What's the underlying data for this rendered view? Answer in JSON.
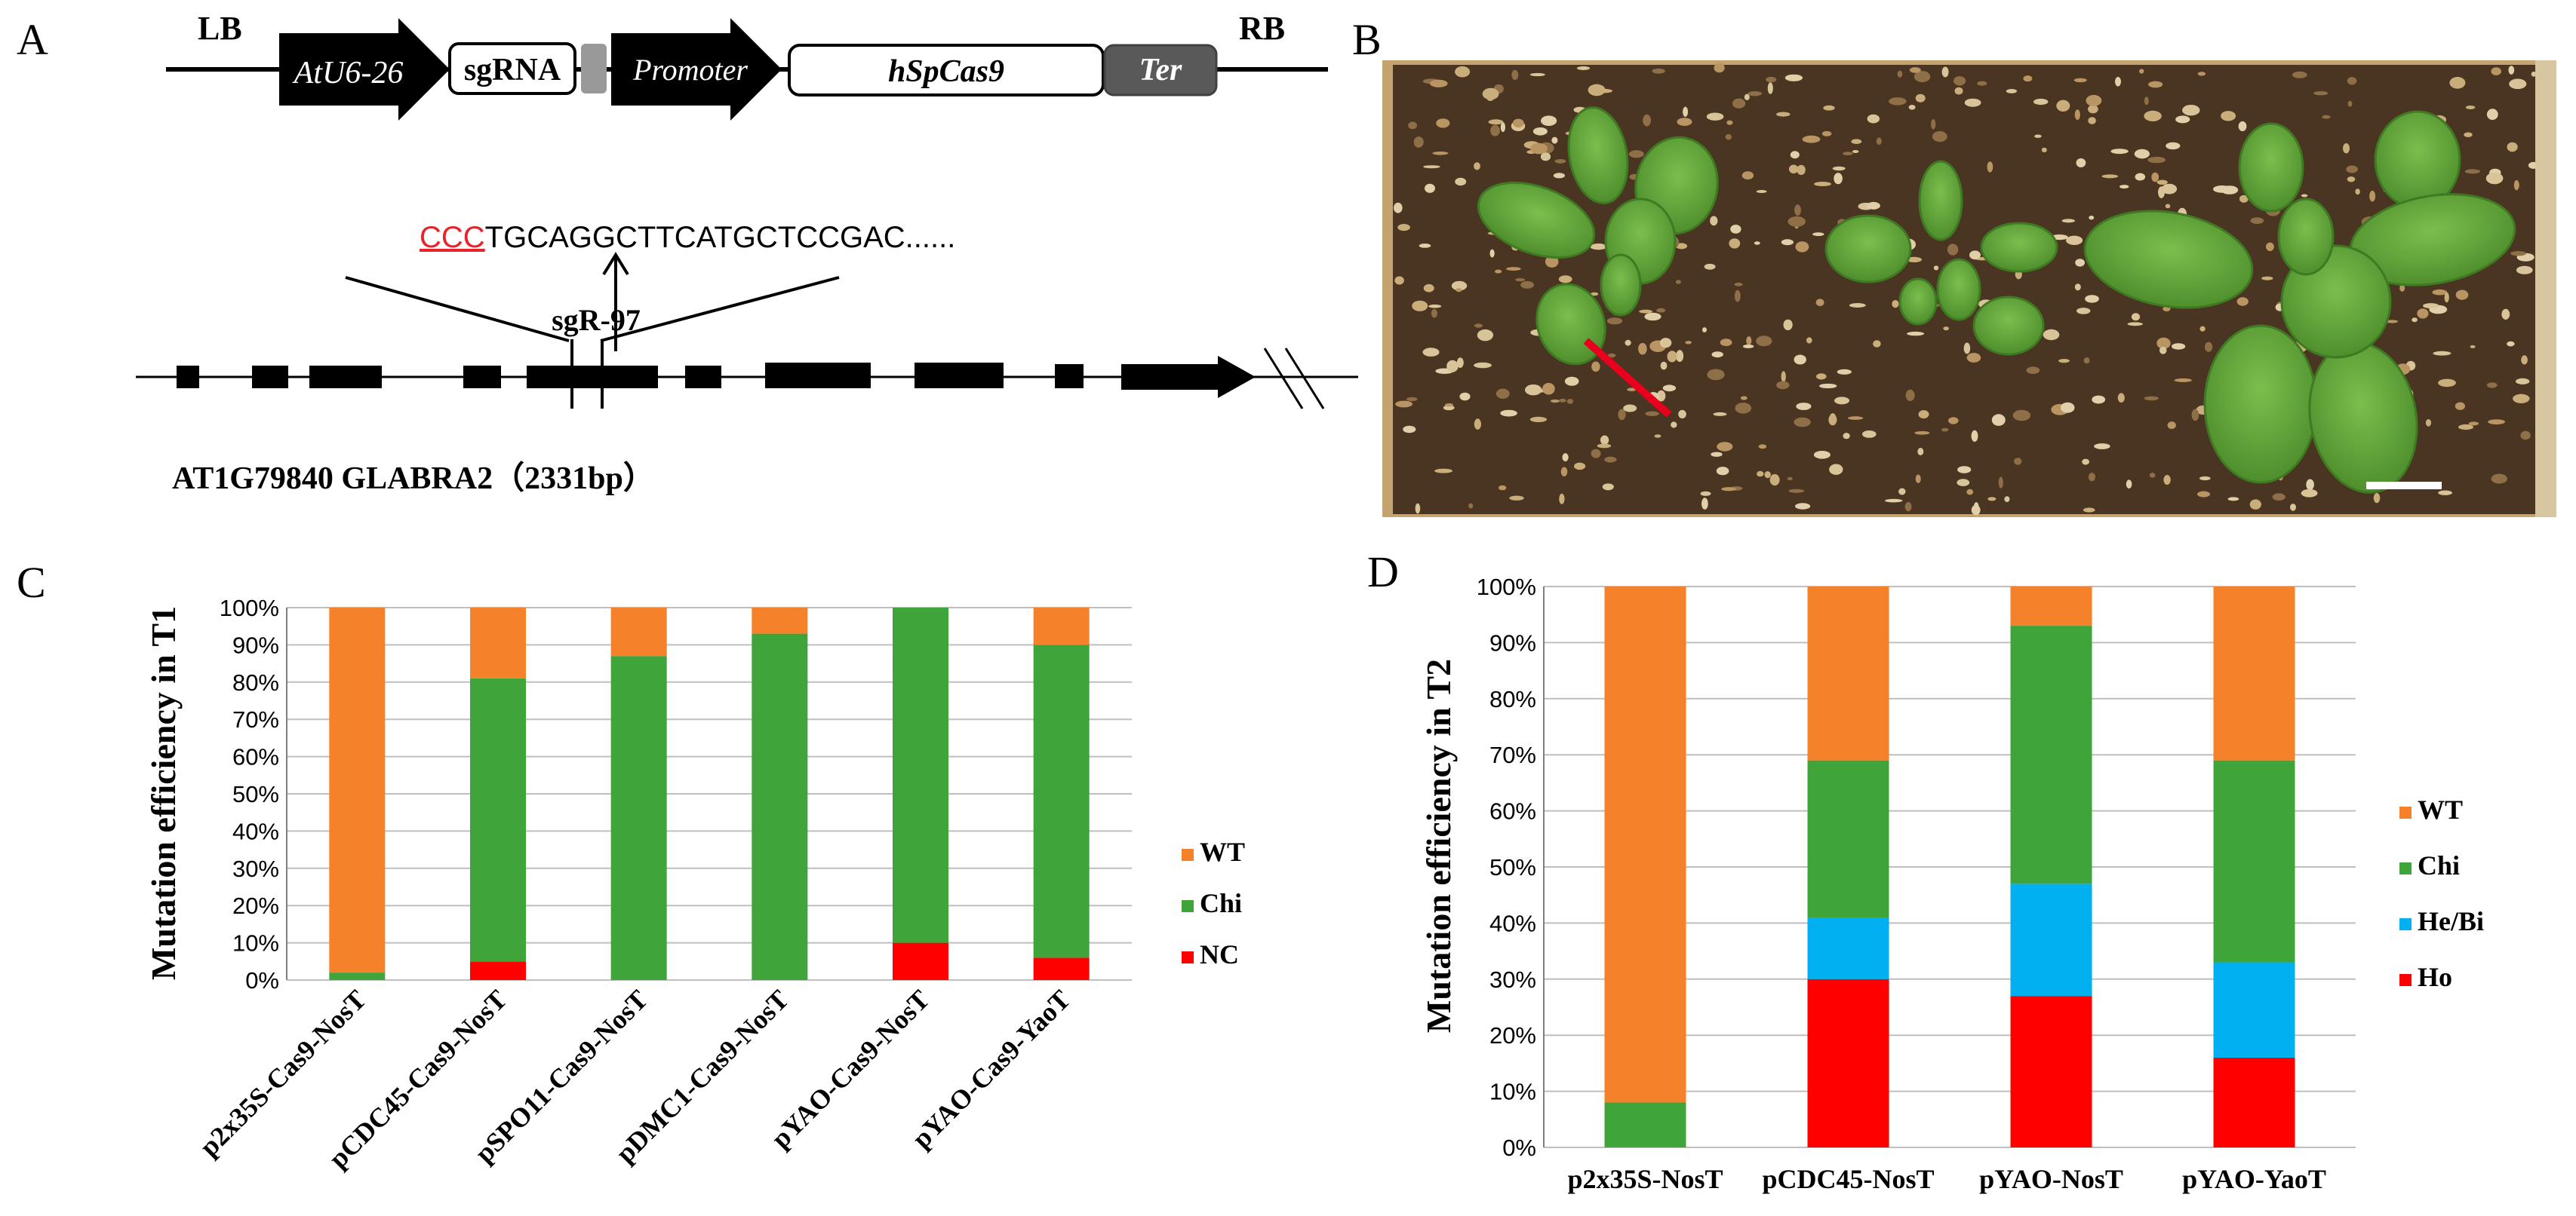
{
  "panel_labels": {
    "a": "A",
    "b": "B",
    "c": "C",
    "d": "D"
  },
  "construct": {
    "lb": "LB",
    "rb": "RB",
    "atu6": "AtU6-26",
    "sgrna": "sgRNA",
    "promoter": "Promoter",
    "cas9": "hSpCas9",
    "ter": "Ter"
  },
  "gene": {
    "pam": "CCC",
    "sequence": "TGCAGGCTTCATGCTCCGAC......",
    "sg_label": "sgR-97",
    "gene_label": "AT1G79840  GLABRA2（2331bp）"
  },
  "colors": {
    "wt": "#F5822A",
    "chi": "#3FA43A",
    "hebi": "#00B0F0",
    "red": "#FF0000",
    "grid": "#BFBFBF",
    "pam": "#E8232A"
  },
  "chart_data": [
    {
      "type": "bar",
      "stacked": true,
      "ylabel": "Mutation efficiency in T1",
      "ylim": [
        0,
        100
      ],
      "yticks": [
        "0%",
        "10%",
        "20%",
        "30%",
        "40%",
        "50%",
        "60%",
        "70%",
        "80%",
        "90%",
        "100%"
      ],
      "categories": [
        "p2x35S-Cas9-NosT",
        "pCDC45-Cas9-NosT",
        "pSPO11-Cas9-NosT",
        "pDMC1-Cas9-NosT",
        "pYAO-Cas9-NosT",
        "pYAO-Cas9-YaoT"
      ],
      "series": [
        {
          "name": "NC",
          "values": [
            0,
            5,
            0,
            0,
            10,
            6
          ]
        },
        {
          "name": "Chi",
          "values": [
            2,
            76,
            87,
            93,
            90,
            84
          ]
        },
        {
          "name": "WT",
          "values": [
            98,
            19,
            13,
            7,
            0,
            10
          ]
        }
      ],
      "legend": [
        "WT",
        "Chi",
        "NC"
      ],
      "legend_position": "right",
      "grid": true
    },
    {
      "type": "bar",
      "stacked": true,
      "ylabel": "Mutation efficiency in T2",
      "ylim": [
        0,
        100
      ],
      "yticks": [
        "0%",
        "10%",
        "20%",
        "30%",
        "40%",
        "50%",
        "60%",
        "70%",
        "80%",
        "90%",
        "100%"
      ],
      "categories": [
        "p2x35S-NosT",
        "pCDC45-NosT",
        "pYAO-NosT",
        "pYAO-YaoT"
      ],
      "series": [
        {
          "name": "Ho",
          "values": [
            0,
            30,
            27,
            16
          ]
        },
        {
          "name": "He/Bi",
          "values": [
            0,
            11,
            20,
            17
          ]
        },
        {
          "name": "Chi",
          "values": [
            8,
            28,
            46,
            36
          ]
        },
        {
          "name": "WT",
          "values": [
            92,
            31,
            7,
            31
          ]
        }
      ],
      "legend": [
        "WT",
        "Chi",
        "He/Bi",
        "Ho"
      ],
      "legend_position": "right",
      "grid": true
    }
  ]
}
